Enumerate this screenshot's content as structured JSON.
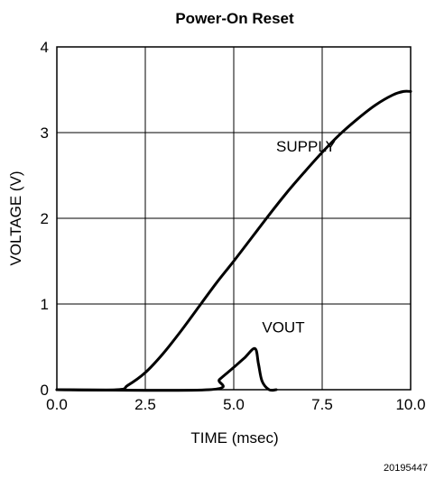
{
  "chart_data": {
    "type": "line",
    "title": "Power-On Reset",
    "xlabel": "TIME (msec)",
    "ylabel": "VOLTAGE (V)",
    "xlim": [
      0,
      10
    ],
    "ylim": [
      0,
      4
    ],
    "xticks": [
      "0.0",
      "2.5",
      "5.0",
      "7.5",
      "10.0"
    ],
    "yticks": [
      "0",
      "1",
      "2",
      "3",
      "4"
    ],
    "grid": true,
    "legend": "none",
    "series": [
      {
        "name": "SUPPLY",
        "x": [
          0.0,
          1.7,
          2.0,
          2.5,
          3.0,
          3.5,
          4.0,
          4.5,
          5.0,
          5.5,
          6.0,
          6.5,
          7.0,
          7.5,
          8.0,
          8.5,
          9.0,
          9.5,
          9.8,
          10.0
        ],
        "y": [
          0.0,
          0.0,
          0.05,
          0.2,
          0.42,
          0.68,
          0.96,
          1.24,
          1.5,
          1.77,
          2.04,
          2.3,
          2.54,
          2.77,
          2.98,
          3.16,
          3.32,
          3.44,
          3.48,
          3.48
        ]
      },
      {
        "name": "VOUT",
        "x": [
          0.0,
          4.3,
          4.6,
          5.0,
          5.3,
          5.6,
          5.7,
          5.8,
          6.0,
          6.2
        ],
        "y": [
          0.0,
          0.0,
          0.12,
          0.26,
          0.37,
          0.48,
          0.3,
          0.1,
          0.0,
          0.0
        ]
      }
    ],
    "annotations": [
      {
        "text": "SUPPLY",
        "x": 6.2,
        "y": 2.78
      },
      {
        "text": "VOUT",
        "x": 5.8,
        "y": 0.67
      }
    ]
  },
  "figure_id": "20195447"
}
